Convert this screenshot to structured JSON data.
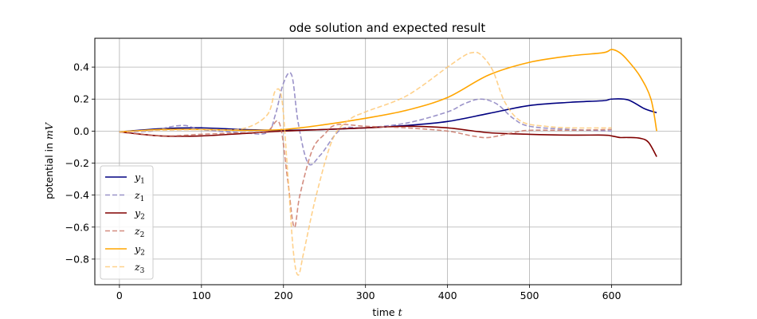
{
  "chart_data": {
    "type": "line",
    "title": "ode solution and expected result",
    "xlabel_text": "time ",
    "xlabel_var": "t",
    "ylabel_text": "potential in ",
    "ylabel_var": "mV",
    "xlim": [
      -30,
      685
    ],
    "ylim": [
      -0.96,
      0.58
    ],
    "xticks": [
      0,
      100,
      200,
      300,
      400,
      500,
      600
    ],
    "yticks": [
      -0.8,
      -0.6,
      -0.4,
      -0.2,
      0.0,
      0.2,
      0.4
    ],
    "xtick_labels": [
      "0",
      "100",
      "200",
      "300",
      "400",
      "500",
      "600"
    ],
    "ytick_labels": [
      "−0.8",
      "−0.6",
      "−0.4",
      "−0.2",
      "0.0",
      "0.2",
      "0.4"
    ],
    "grid": true,
    "legend_position": "lower-left",
    "series": [
      {
        "name": "y",
        "sub": "1",
        "color": "#000080",
        "dashed": false,
        "opacity": 1,
        "x": [
          0,
          50,
          100,
          150,
          200,
          250,
          300,
          350,
          400,
          450,
          500,
          550,
          590,
          600,
          620,
          640,
          655
        ],
        "y": [
          -0.005,
          0.015,
          0.02,
          0.01,
          0.005,
          0.01,
          0.02,
          0.035,
          0.06,
          0.11,
          0.16,
          0.18,
          0.19,
          0.2,
          0.195,
          0.14,
          0.115
        ]
      },
      {
        "name": "z",
        "sub": "1",
        "color": "#8a80c0",
        "dashed": true,
        "opacity": 0.85,
        "x": [
          0,
          40,
          60,
          80,
          100,
          150,
          180,
          190,
          200,
          210,
          218,
          230,
          245,
          270,
          300,
          350,
          400,
          420,
          440,
          460,
          480,
          500,
          550,
          600
        ],
        "y": [
          -0.005,
          0.0,
          0.025,
          0.035,
          0.01,
          -0.01,
          -0.01,
          0.1,
          0.3,
          0.35,
          0.05,
          -0.2,
          -0.15,
          0.01,
          0.02,
          0.05,
          0.12,
          0.17,
          0.2,
          0.17,
          0.08,
          0.03,
          0.01,
          0.0
        ]
      },
      {
        "name": "y",
        "sub": "2",
        "color": "#800000",
        "dashed": false,
        "opacity": 1,
        "x": [
          0,
          50,
          100,
          150,
          200,
          250,
          300,
          350,
          400,
          450,
          500,
          550,
          590,
          600,
          610,
          620,
          635,
          645,
          655
        ],
        "y": [
          -0.005,
          -0.03,
          -0.03,
          -0.015,
          0.0,
          0.01,
          0.02,
          0.03,
          0.02,
          -0.01,
          -0.02,
          -0.025,
          -0.025,
          -0.03,
          -0.04,
          -0.04,
          -0.045,
          -0.07,
          -0.16
        ]
      },
      {
        "name": "z",
        "sub": "2",
        "color": "#c87060",
        "dashed": true,
        "opacity": 0.8,
        "x": [
          0,
          50,
          100,
          150,
          180,
          195,
          205,
          213,
          220,
          235,
          250,
          265,
          300,
          350,
          400,
          430,
          450,
          480,
          500,
          550,
          600
        ],
        "y": [
          -0.005,
          -0.03,
          -0.02,
          -0.01,
          0.0,
          0.05,
          -0.3,
          -0.6,
          -0.4,
          -0.12,
          -0.02,
          0.04,
          0.03,
          0.02,
          0.0,
          -0.03,
          -0.04,
          -0.01,
          0.005,
          0.005,
          0.01
        ]
      },
      {
        "name": "y",
        "sub": "2",
        "color": "#ffa500",
        "dashed": false,
        "opacity": 1,
        "x": [
          0,
          50,
          100,
          150,
          200,
          250,
          300,
          350,
          400,
          450,
          500,
          550,
          590,
          600,
          610,
          620,
          635,
          648,
          655
        ],
        "y": [
          -0.005,
          0.01,
          0.01,
          0.005,
          0.01,
          0.04,
          0.08,
          0.13,
          0.21,
          0.35,
          0.43,
          0.47,
          0.49,
          0.51,
          0.49,
          0.44,
          0.34,
          0.2,
          0.0
        ]
      },
      {
        "name": "z",
        "sub": "3",
        "color": "#ffc66e",
        "dashed": true,
        "opacity": 0.8,
        "x": [
          0,
          50,
          100,
          150,
          180,
          190,
          198,
          205,
          212,
          218,
          225,
          240,
          260,
          280,
          300,
          350,
          400,
          420,
          430,
          440,
          455,
          470,
          490,
          520,
          550,
          600
        ],
        "y": [
          -0.005,
          0.005,
          0.01,
          0.015,
          0.1,
          0.25,
          0.2,
          -0.25,
          -0.75,
          -0.9,
          -0.75,
          -0.4,
          -0.05,
          0.07,
          0.12,
          0.22,
          0.4,
          0.47,
          0.49,
          0.48,
          0.38,
          0.18,
          0.06,
          0.03,
          0.02,
          0.02
        ]
      }
    ]
  }
}
